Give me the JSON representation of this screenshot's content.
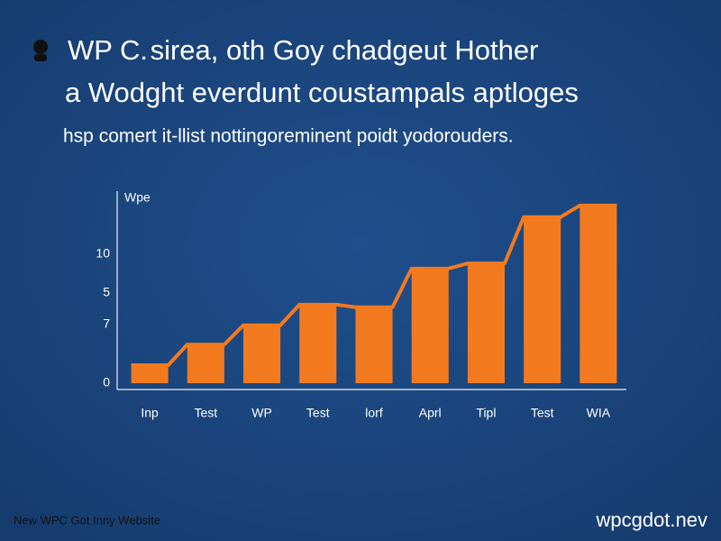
{
  "chart_data": {
    "type": "bar",
    "title_lines": [
      "WP C. sirea, oth Goy chadgeut Hother",
      "a Wodght everdunt coustampals aptloges"
    ],
    "subtitle": "hsp comert it-llist nottingoreminent poidt yodorouders.",
    "y_axis_title": "Wpe",
    "y_axis_labels": [
      "10",
      "5",
      "7",
      "0"
    ],
    "categories": [
      "Inp",
      "Test",
      "WP",
      "Test",
      "lorf",
      "Aprl",
      "Tipl",
      "Test",
      "WIA"
    ],
    "values": [
      1.4,
      3.0,
      4.5,
      6.1,
      5.9,
      8.9,
      9.3,
      12.9,
      13.8
    ],
    "color": "#f47a1f",
    "ylim": [
      0,
      14
    ],
    "footer_left": "New WPC Got Inny Website",
    "footer_right": "wpcgdot.nev"
  }
}
